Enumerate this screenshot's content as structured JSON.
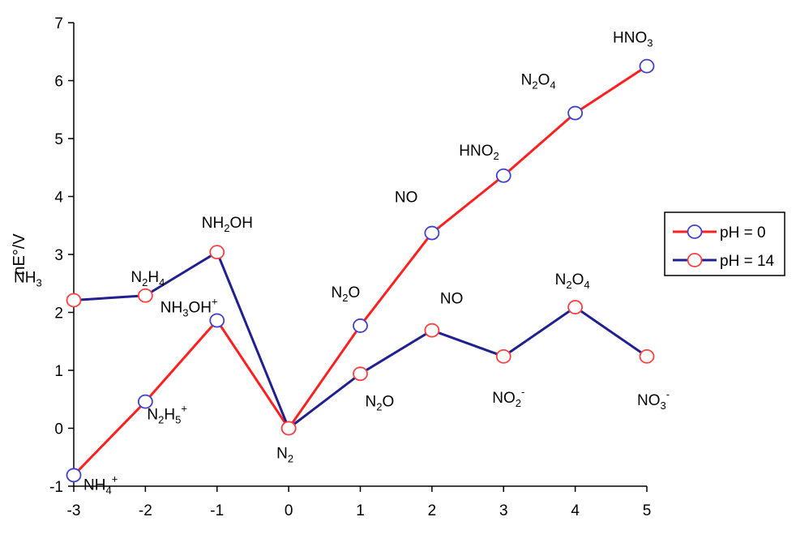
{
  "chart_data": {
    "type": "line",
    "title": "",
    "xlabel": "",
    "ylabel": "nE°/V",
    "xlim": [
      -3,
      5
    ],
    "ylim": [
      -1,
      7
    ],
    "x_ticks": [
      "-3",
      "-2",
      "-1",
      "0",
      "1",
      "2",
      "3",
      "4",
      "5"
    ],
    "y_ticks": [
      "-1",
      "0",
      "1",
      "2",
      "3",
      "4",
      "5",
      "6",
      "7"
    ],
    "grid": false,
    "legend_position": "right",
    "series": [
      {
        "name": "pH = 0",
        "line_color": "#ff2020",
        "marker_color": "#4040d0",
        "points": [
          {
            "x": -3,
            "y": -0.81,
            "label": [
              "NH",
              {
                "sub": "4"
              },
              {
                "sup": "+"
              }
            ]
          },
          {
            "x": -2,
            "y": 0.46,
            "label": [
              "N",
              {
                "sub": "2"
              },
              "H",
              {
                "sub": "5"
              },
              {
                "sup": "+"
              }
            ]
          },
          {
            "x": -1,
            "y": 1.86,
            "label": [
              "NH",
              {
                "sub": "3"
              },
              "OH",
              {
                "sup": "+"
              }
            ]
          },
          {
            "x": 0,
            "y": 0.0,
            "label": [
              "N",
              {
                "sub": "2"
              }
            ]
          },
          {
            "x": 1,
            "y": 1.77,
            "label": [
              "N",
              {
                "sub": "2"
              },
              "O"
            ]
          },
          {
            "x": 2,
            "y": 3.37,
            "label": [
              "NO"
            ]
          },
          {
            "x": 3,
            "y": 4.36,
            "label": [
              "HNO",
              {
                "sub": "2"
              }
            ]
          },
          {
            "x": 4,
            "y": 5.44,
            "label": [
              "N",
              {
                "sub": "2"
              },
              "O",
              {
                "sub": "4"
              }
            ]
          },
          {
            "x": 5,
            "y": 6.25,
            "label": [
              "HNO",
              {
                "sub": "3"
              }
            ]
          }
        ]
      },
      {
        "name": "pH = 14",
        "line_color": "#202090",
        "marker_color": "#ff4040",
        "points": [
          {
            "x": -3,
            "y": 2.21,
            "label": [
              "NH",
              {
                "sub": "3"
              }
            ]
          },
          {
            "x": -2,
            "y": 2.29,
            "label": [
              "N",
              {
                "sub": "2"
              },
              "H",
              {
                "sub": "4"
              }
            ]
          },
          {
            "x": -1,
            "y": 3.04,
            "label": [
              "NH",
              {
                "sub": "2"
              },
              "OH"
            ]
          },
          {
            "x": 0,
            "y": 0.0,
            "label": []
          },
          {
            "x": 1,
            "y": 0.94,
            "label": [
              "N",
              {
                "sub": "2"
              },
              "O"
            ]
          },
          {
            "x": 2,
            "y": 1.69,
            "label": [
              "NO"
            ]
          },
          {
            "x": 3,
            "y": 1.24,
            "label": [
              "NO",
              {
                "sub": "2"
              },
              {
                "sup": "-"
              }
            ]
          },
          {
            "x": 4,
            "y": 2.09,
            "label": [
              "N",
              {
                "sub": "2"
              },
              "O",
              {
                "sub": "4"
              }
            ]
          },
          {
            "x": 5,
            "y": 1.24,
            "label": [
              "NO",
              {
                "sub": "3"
              },
              {
                "sup": "-"
              }
            ]
          }
        ]
      }
    ]
  }
}
